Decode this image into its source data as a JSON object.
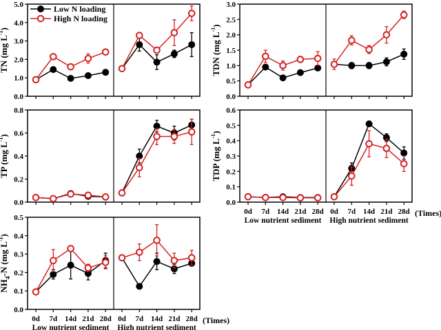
{
  "colors": {
    "low_n": "#000000",
    "high_n": "#d42020"
  },
  "legend": {
    "low_n_label": "Low N loading",
    "high_n_label": "High N loading",
    "placement": "top-left of first panel"
  },
  "x_tick_labels": [
    "0d",
    "7d",
    "14d",
    "21d",
    "28d"
  ],
  "group_labels": [
    "Low nutrient sediment",
    "High nutrient sediment"
  ],
  "x_unit_label": "(Times)",
  "chart_data": [
    {
      "type": "line",
      "id": "tn",
      "ylabel": {
        "main": "TN (mg L",
        "sup": "-1",
        "end": ")"
      },
      "ylim": [
        0,
        5
      ],
      "ystep": 1,
      "ydecimals": 1,
      "groups": [
        "Low nutrient sediment",
        "High nutrient sediment"
      ],
      "categories": [
        "0d",
        "7d",
        "14d",
        "21d",
        "28d"
      ],
      "series": [
        {
          "name": "Low N loading",
          "values": [
            [
              0.9,
              1.45,
              0.97,
              1.12,
              1.3
            ],
            [
              1.5,
              2.8,
              1.85,
              2.3,
              2.8
            ]
          ],
          "errors": [
            [
              0.03,
              0.05,
              0.05,
              0.05,
              0.05
            ],
            [
              0,
              0.35,
              0.4,
              0.2,
              0.65
            ]
          ]
        },
        {
          "name": "High N loading",
          "values": [
            [
              0.9,
              2.15,
              1.6,
              2.05,
              2.4
            ],
            [
              1.5,
              3.3,
              2.5,
              3.45,
              4.5
            ]
          ],
          "errors": [
            [
              0,
              0.1,
              0.05,
              0.25,
              0.05
            ],
            [
              0,
              0.1,
              0.15,
              0.7,
              0.4
            ]
          ]
        }
      ]
    },
    {
      "type": "line",
      "id": "tdn",
      "ylabel": {
        "main": "TDN (mg L",
        "sup": "-1",
        "end": ")"
      },
      "ylim": [
        0,
        3
      ],
      "ystep": 0.5,
      "ydecimals": 1,
      "groups": [
        "Low nutrient sediment",
        "High nutrient sediment"
      ],
      "categories": [
        "0d",
        "7d",
        "14d",
        "21d",
        "28d"
      ],
      "series": [
        {
          "name": "Low N loading",
          "values": [
            [
              0.37,
              0.95,
              0.6,
              0.77,
              0.92
            ],
            [
              1.04,
              1.0,
              1.0,
              1.12,
              1.37
            ]
          ],
          "errors": [
            [
              0,
              0.03,
              0.03,
              0.05,
              0.08
            ],
            [
              0,
              0.1,
              0.1,
              0.13,
              0.17
            ]
          ]
        },
        {
          "name": "High N loading",
          "values": [
            [
              0.37,
              1.3,
              1.0,
              1.2,
              1.23
            ],
            [
              1.04,
              1.82,
              1.52,
              2.0,
              2.65
            ]
          ],
          "errors": [
            [
              0,
              0.2,
              0.15,
              0.1,
              0.22
            ],
            [
              0.17,
              0.15,
              0.13,
              0.27,
              0.12
            ]
          ]
        }
      ]
    },
    {
      "type": "line",
      "id": "tp",
      "ylabel": {
        "main": "TP (mg L",
        "sup": "-1",
        "end": ")"
      },
      "ylim": [
        0,
        0.8
      ],
      "ystep": 0.2,
      "ydecimals": 1,
      "groups": [
        "Low nutrient sediment",
        "High nutrient sediment"
      ],
      "categories": [
        "0d",
        "7d",
        "14d",
        "21d",
        "28d"
      ],
      "series": [
        {
          "name": "Low N loading",
          "values": [
            [
              0.04,
              0.03,
              0.075,
              0.05,
              0.045
            ],
            [
              0.08,
              0.4,
              0.66,
              0.6,
              0.67
            ]
          ],
          "errors": [
            [
              0,
              0,
              0.015,
              0.01,
              0.01
            ],
            [
              0,
              0.06,
              0.05,
              0.06,
              0.05
            ]
          ]
        },
        {
          "name": "High N loading",
          "values": [
            [
              0.04,
              0.03,
              0.07,
              0.06,
              0.045
            ],
            [
              0.08,
              0.3,
              0.57,
              0.57,
              0.61
            ]
          ],
          "errors": [
            [
              0,
              0,
              0.01,
              0.01,
              0.01
            ],
            [
              0,
              0.08,
              0.07,
              0.06,
              0.11
            ]
          ]
        }
      ]
    },
    {
      "type": "line",
      "id": "tdp",
      "ylabel": {
        "main": "TDP (mg L",
        "sup": "-1",
        "end": ")"
      },
      "ylim": [
        0,
        0.6
      ],
      "ystep": 0.1,
      "ydecimals": 1,
      "groups": [
        "Low nutrient sediment",
        "High nutrient sediment"
      ],
      "categories": [
        "0d",
        "7d",
        "14d",
        "21d",
        "28d"
      ],
      "series": [
        {
          "name": "Low N loading",
          "values": [
            [
              0.035,
              0.03,
              0.035,
              0.03,
              0.03
            ],
            [
              0.035,
              0.22,
              0.51,
              0.42,
              0.32
            ]
          ],
          "errors": [
            [
              0,
              0,
              0,
              0,
              0
            ],
            [
              0,
              0.035,
              0,
              0.025,
              0.04
            ]
          ]
        },
        {
          "name": "High N loading",
          "values": [
            [
              0.035,
              0.03,
              0.03,
              0.028,
              0.028
            ],
            [
              0.035,
              0.17,
              0.38,
              0.35,
              0.25
            ]
          ],
          "errors": [
            [
              0,
              0,
              0,
              0,
              0
            ],
            [
              0,
              0.06,
              0.085,
              0.06,
              0.05
            ]
          ]
        }
      ]
    },
    {
      "type": "line",
      "id": "nh4",
      "ylabel": {
        "main": "NH",
        "sub": "4",
        "rest": "-N (mg L",
        "sup": "-1",
        "end": ")"
      },
      "ylim": [
        0,
        0.5
      ],
      "ystep": 0.1,
      "ydecimals": 1,
      "groups": [
        "Low nutrient sediment",
        "High nutrient sediment"
      ],
      "categories": [
        "0d",
        "7d",
        "14d",
        "21d",
        "28d"
      ],
      "series": [
        {
          "name": "Low N loading",
          "values": [
            [
              0.095,
              0.19,
              0.24,
              0.195,
              0.265
            ],
            [
              0.28,
              0.125,
              0.26,
              0.22,
              0.25
            ]
          ],
          "errors": [
            [
              0,
              0.025,
              0.075,
              0.035,
              0.04
            ],
            [
              0,
              0,
              0.045,
              0.025,
              0.015
            ]
          ]
        },
        {
          "name": "High N loading",
          "values": [
            [
              0.095,
              0.265,
              0.33,
              0.225,
              0.255
            ],
            [
              0.28,
              0.31,
              0.375,
              0.265,
              0.28
            ]
          ],
          "errors": [
            [
              0,
              0.06,
              0,
              0.02,
              0.035
            ],
            [
              0,
              0.045,
              0.085,
              0.04,
              0.04
            ]
          ]
        }
      ]
    }
  ]
}
